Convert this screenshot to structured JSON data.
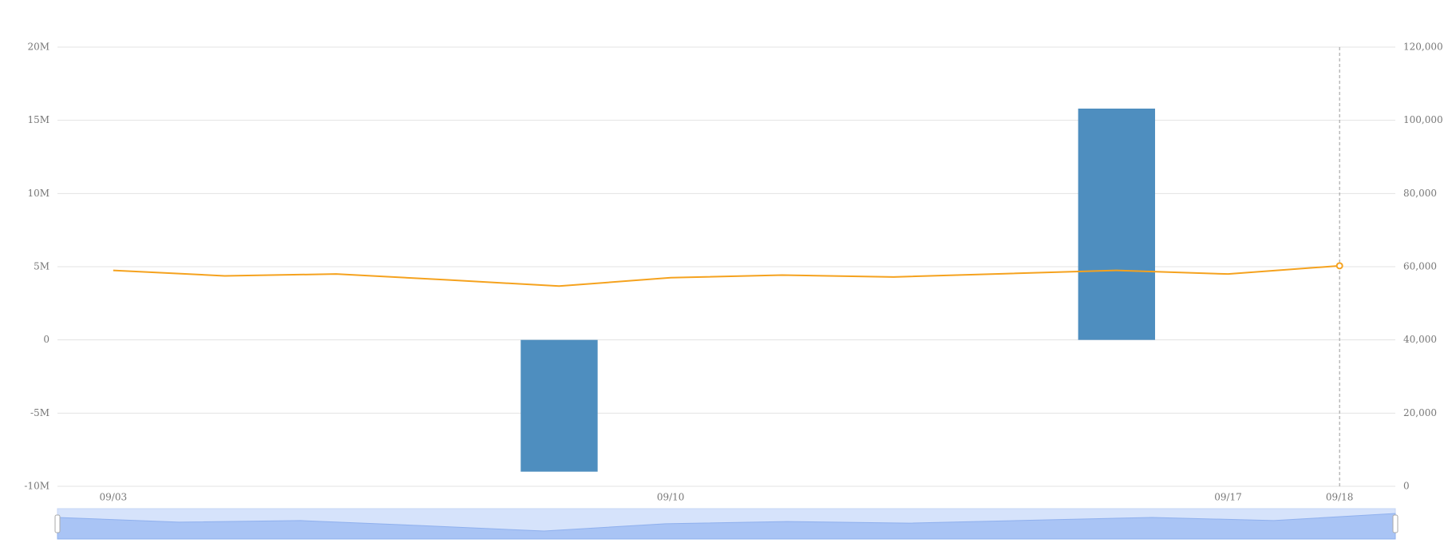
{
  "chart_data": {
    "type": "bar-line",
    "categories": [
      "09/03",
      null,
      null,
      null,
      null,
      "09/10",
      null,
      null,
      null,
      null,
      "09/17",
      "09/18"
    ],
    "series": [
      {
        "type": "bar",
        "color": "#4e8ebf",
        "values": [
          0,
          0,
          0,
          0,
          -9000000,
          0,
          0,
          0,
          0,
          15800000,
          0,
          0
        ]
      },
      {
        "type": "line",
        "axis": "y2",
        "color": "#f5a21e",
        "values": [
          59000,
          57500,
          58000,
          56400,
          54700,
          57000,
          57700,
          57200,
          58100,
          59000,
          58000,
          60250
        ]
      }
    ],
    "ylim": [
      -10000000,
      20000000
    ],
    "yticks": [
      {
        "value": -10000000,
        "label": "-10M"
      },
      {
        "value": -5000000,
        "label": "-5M"
      },
      0,
      {
        "value": 5000000,
        "label": "5M"
      },
      {
        "value": 10000000,
        "label": "10M"
      },
      {
        "value": 15000000,
        "label": "15M"
      },
      {
        "value": 20000000,
        "label": "20M"
      }
    ],
    "y2lim": [
      0,
      120000
    ],
    "y2ticks": [
      0,
      {
        "value": 20000,
        "label": "20,000"
      },
      {
        "value": 40000,
        "label": "40,000"
      },
      {
        "value": 60000,
        "label": "60,000"
      },
      {
        "value": 80000,
        "label": "80,000"
      },
      {
        "value": 100000,
        "label": "100,000"
      },
      {
        "value": 120000,
        "label": "120,000"
      }
    ],
    "grid": true
  }
}
